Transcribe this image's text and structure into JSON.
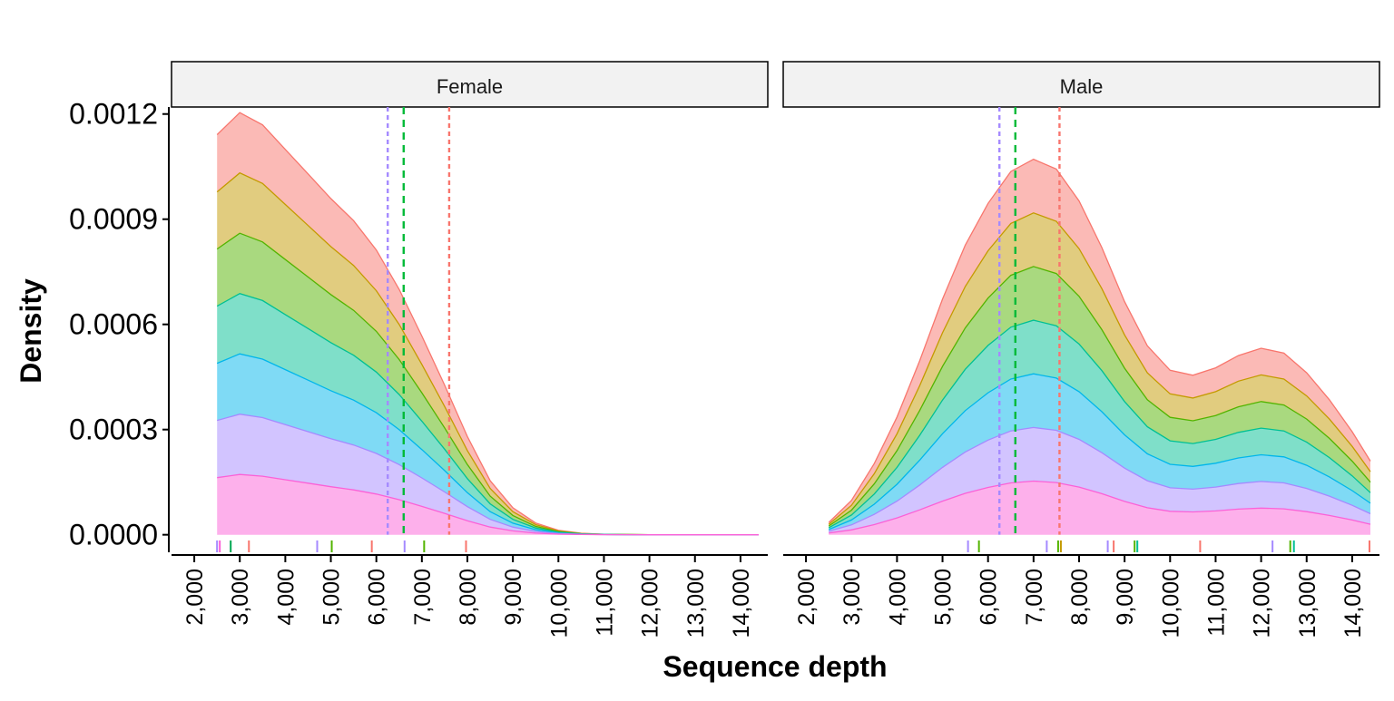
{
  "chart_data": {
    "type": "area",
    "stacked": true,
    "xlabel": "Sequence depth",
    "ylabel": "Density",
    "x_ticks": [
      2000,
      3000,
      4000,
      5000,
      6000,
      7000,
      8000,
      9000,
      10000,
      11000,
      12000,
      13000,
      14000
    ],
    "x_tick_labels": [
      "2,000",
      "3,000",
      "4,000",
      "5,000",
      "6,000",
      "7,000",
      "8,000",
      "9,000",
      "10,000",
      "11,000",
      "12,000",
      "13,000",
      "14,000"
    ],
    "y_ticks": [
      0,
      0.0003,
      0.0006,
      0.0009,
      0.0012
    ],
    "y_tick_labels": [
      "0.0000",
      "0.0003",
      "0.0006",
      "0.0009",
      "0.0012"
    ],
    "xlim": [
      1500,
      14600
    ],
    "ylim": [
      -5e-05,
      0.00122
    ],
    "grid": false,
    "legend": "none",
    "colors": [
      "#F8766D",
      "#C49A00",
      "#53B400",
      "#00C094",
      "#00B6EB",
      "#A58AFF",
      "#FB61D7"
    ],
    "panels": [
      {
        "label": "Female",
        "x": [
          2500,
          3000,
          3500,
          4000,
          4500,
          5000,
          5500,
          6000,
          6500,
          7000,
          7500,
          8000,
          8500,
          9000,
          9500,
          10000,
          10500,
          11000,
          11500,
          12000,
          12500,
          13000,
          13500,
          14000,
          14400
        ],
        "series": [
          {
            "values": [
              0.000163,
              0.000172,
              0.000167,
              0.000157,
              0.000147,
              0.000137,
              0.000128,
              0.000116,
              0.0001,
              8.1e-05,
              6.1e-05,
              4e-05,
              2.2e-05,
              1.1e-05,
              4.8e-06,
              1.8e-06,
              6e-07,
              2e-07,
              1e-07,
              0,
              0,
              0,
              0,
              0,
              0
            ]
          },
          {
            "values": [
              0.000163,
              0.000172,
              0.000167,
              0.000157,
              0.000147,
              0.000137,
              0.000128,
              0.000116,
              0.0001,
              8.1e-05,
              6.1e-05,
              4e-05,
              2.2e-05,
              1.1e-05,
              4.8e-06,
              1.8e-06,
              6e-07,
              2e-07,
              1e-07,
              0,
              0,
              0,
              0,
              0,
              0
            ]
          },
          {
            "values": [
              0.000163,
              0.000172,
              0.000167,
              0.000157,
              0.000147,
              0.000137,
              0.000128,
              0.000116,
              0.0001,
              8.1e-05,
              6.1e-05,
              4e-05,
              2.2e-05,
              1.1e-05,
              4.8e-06,
              1.8e-06,
              6e-07,
              2e-07,
              1e-07,
              0,
              0,
              0,
              0,
              0,
              0
            ]
          },
          {
            "values": [
              0.000163,
              0.000172,
              0.000167,
              0.000157,
              0.000147,
              0.000137,
              0.000128,
              0.000116,
              0.0001,
              8.1e-05,
              6.1e-05,
              4e-05,
              2.2e-05,
              1.1e-05,
              4.8e-06,
              1.8e-06,
              6e-07,
              2e-07,
              1e-07,
              0,
              0,
              0,
              0,
              0,
              0
            ]
          },
          {
            "values": [
              0.000163,
              0.000172,
              0.000167,
              0.000157,
              0.000147,
              0.000137,
              0.000128,
              0.000116,
              0.0001,
              8.1e-05,
              6.1e-05,
              4e-05,
              2.2e-05,
              1.1e-05,
              4.8e-06,
              1.8e-06,
              6e-07,
              2e-07,
              1e-07,
              0,
              0,
              0,
              0,
              0,
              0
            ]
          },
          {
            "values": [
              0.000163,
              0.000172,
              0.000167,
              0.000157,
              0.000147,
              0.000137,
              0.000128,
              0.000116,
              0.0001,
              8.1e-05,
              6.1e-05,
              4e-05,
              2.2e-05,
              1.1e-05,
              4.8e-06,
              1.8e-06,
              6e-07,
              2e-07,
              1e-07,
              0,
              0,
              0,
              0,
              0,
              0
            ]
          },
          {
            "values": [
              0.000163,
              0.000172,
              0.000167,
              0.000157,
              0.000147,
              0.000137,
              0.000128,
              0.000116,
              0.0001,
              8.1e-05,
              6.1e-05,
              4e-05,
              2.2e-05,
              1.1e-05,
              4.8e-06,
              1.8e-06,
              6e-07,
              2e-07,
              1e-07,
              0,
              0,
              0,
              0,
              0,
              0
            ]
          }
        ],
        "vlines": [
          {
            "x": 6250,
            "color": "#A58AFF",
            "dash": "short"
          },
          {
            "x": 6600,
            "color": "#00BA38",
            "dash": "long"
          },
          {
            "x": 7600,
            "color": "#F8766D",
            "dash": "short"
          }
        ],
        "rug": [
          {
            "x": 2500,
            "color": "#A58AFF"
          },
          {
            "x": 2560,
            "color": "#FB61D7"
          },
          {
            "x": 2800,
            "color": "#00A651"
          },
          {
            "x": 3200,
            "color": "#F8766D"
          },
          {
            "x": 4700,
            "color": "#A58AFF"
          },
          {
            "x": 5020,
            "color": "#53B400"
          },
          {
            "x": 5900,
            "color": "#F8766D"
          },
          {
            "x": 6620,
            "color": "#A58AFF"
          },
          {
            "x": 7050,
            "color": "#53B400"
          },
          {
            "x": 7970,
            "color": "#F8766D"
          }
        ]
      },
      {
        "label": "Male",
        "x": [
          2500,
          3000,
          3500,
          4000,
          4500,
          5000,
          5500,
          6000,
          6500,
          7000,
          7500,
          8000,
          8500,
          9000,
          9500,
          10000,
          10500,
          11000,
          11500,
          12000,
          12500,
          13000,
          13500,
          14000,
          14400
        ],
        "series": [
          {
            "values": [
              5e-06,
              1.4e-05,
              2.9e-05,
              4.8e-05,
              7.1e-05,
              9.6e-05,
              0.000118,
              0.000135,
              0.000148,
              0.000153,
              0.000149,
              0.000136,
              0.000117,
              9.5e-05,
              7.7e-05,
              6.7e-05,
              6.5e-05,
              6.8e-05,
              7.3e-05,
              7.6e-05,
              7.4e-05,
              6.6e-05,
              5.5e-05,
              4.2e-05,
              3e-05
            ]
          },
          {
            "values": [
              5e-06,
              1.4e-05,
              2.9e-05,
              4.8e-05,
              7.1e-05,
              9.6e-05,
              0.000118,
              0.000135,
              0.000148,
              0.000153,
              0.000149,
              0.000136,
              0.000117,
              9.5e-05,
              7.7e-05,
              6.7e-05,
              6.5e-05,
              6.8e-05,
              7.3e-05,
              7.6e-05,
              7.4e-05,
              6.6e-05,
              5.5e-05,
              4.2e-05,
              3e-05
            ]
          },
          {
            "values": [
              5e-06,
              1.4e-05,
              2.9e-05,
              4.8e-05,
              7.1e-05,
              9.6e-05,
              0.000118,
              0.000135,
              0.000148,
              0.000153,
              0.000149,
              0.000136,
              0.000117,
              9.5e-05,
              7.7e-05,
              6.7e-05,
              6.5e-05,
              6.8e-05,
              7.3e-05,
              7.6e-05,
              7.4e-05,
              6.6e-05,
              5.5e-05,
              4.2e-05,
              3e-05
            ]
          },
          {
            "values": [
              5e-06,
              1.4e-05,
              2.9e-05,
              4.8e-05,
              7.1e-05,
              9.6e-05,
              0.000118,
              0.000135,
              0.000148,
              0.000153,
              0.000149,
              0.000136,
              0.000117,
              9.5e-05,
              7.7e-05,
              6.7e-05,
              6.5e-05,
              6.8e-05,
              7.3e-05,
              7.6e-05,
              7.4e-05,
              6.6e-05,
              5.5e-05,
              4.2e-05,
              3e-05
            ]
          },
          {
            "values": [
              5e-06,
              1.4e-05,
              2.9e-05,
              4.8e-05,
              7.1e-05,
              9.6e-05,
              0.000118,
              0.000135,
              0.000148,
              0.000153,
              0.000149,
              0.000136,
              0.000117,
              9.5e-05,
              7.7e-05,
              6.7e-05,
              6.5e-05,
              6.8e-05,
              7.3e-05,
              7.6e-05,
              7.4e-05,
              6.6e-05,
              5.5e-05,
              4.2e-05,
              3e-05
            ]
          },
          {
            "values": [
              5e-06,
              1.4e-05,
              2.9e-05,
              4.8e-05,
              7.1e-05,
              9.6e-05,
              0.000118,
              0.000135,
              0.000148,
              0.000153,
              0.000149,
              0.000136,
              0.000117,
              9.5e-05,
              7.7e-05,
              6.7e-05,
              6.5e-05,
              6.8e-05,
              7.3e-05,
              7.6e-05,
              7.4e-05,
              6.6e-05,
              5.5e-05,
              4.2e-05,
              3e-05
            ]
          },
          {
            "values": [
              5e-06,
              1.4e-05,
              2.9e-05,
              4.8e-05,
              7.1e-05,
              9.6e-05,
              0.000118,
              0.000135,
              0.000148,
              0.000153,
              0.000149,
              0.000136,
              0.000117,
              9.5e-05,
              7.7e-05,
              6.7e-05,
              6.5e-05,
              6.8e-05,
              7.3e-05,
              7.6e-05,
              7.4e-05,
              6.6e-05,
              5.5e-05,
              4.2e-05,
              3e-05
            ]
          }
        ],
        "vlines": [
          {
            "x": 6250,
            "color": "#A58AFF",
            "dash": "short"
          },
          {
            "x": 6600,
            "color": "#00BA38",
            "dash": "long"
          },
          {
            "x": 7570,
            "color": "#F8766D",
            "dash": "short"
          }
        ],
        "rug": [
          {
            "x": 5560,
            "color": "#A58AFF"
          },
          {
            "x": 5800,
            "color": "#53B400"
          },
          {
            "x": 7290,
            "color": "#A58AFF"
          },
          {
            "x": 7540,
            "color": "#53B400"
          },
          {
            "x": 7600,
            "color": "#C49A00"
          },
          {
            "x": 8630,
            "color": "#A58AFF"
          },
          {
            "x": 8760,
            "color": "#F8766D"
          },
          {
            "x": 9220,
            "color": "#53B400"
          },
          {
            "x": 9280,
            "color": "#00C094"
          },
          {
            "x": 10660,
            "color": "#F8766D"
          },
          {
            "x": 12250,
            "color": "#A58AFF"
          },
          {
            "x": 12640,
            "color": "#53B400"
          },
          {
            "x": 12720,
            "color": "#00C094"
          },
          {
            "x": 14380,
            "color": "#F8766D"
          }
        ]
      }
    ]
  }
}
